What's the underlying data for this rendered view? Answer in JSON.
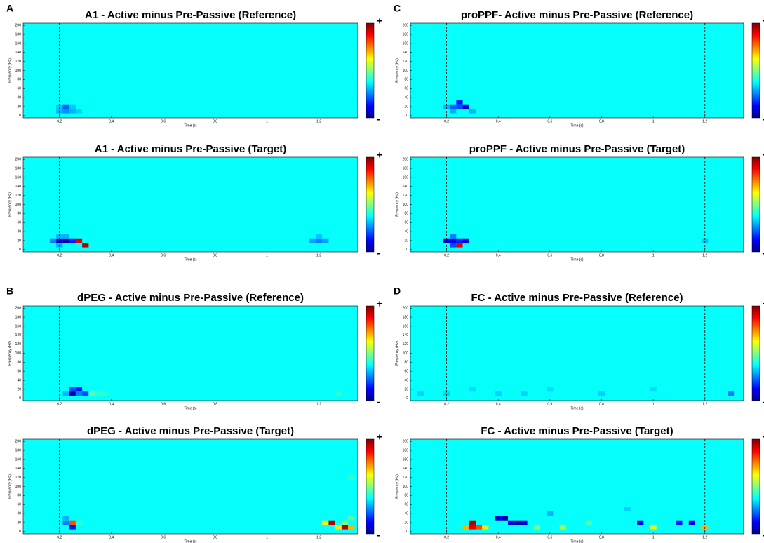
{
  "chart_data": [
    {
      "type": "heatmap",
      "panel_label": "A",
      "title": "A1 - Active minus Pre-Passive (Reference)",
      "xlabel": "Time (s)",
      "ylabel": "Frequency (Hz)",
      "xlim": [
        0.06,
        1.35
      ],
      "ylim": [
        -5,
        205
      ],
      "xticks": [
        {
          "value": 0.2,
          "label": "0,2"
        },
        {
          "value": 0.4,
          "label": "0,4"
        },
        {
          "value": 0.6,
          "label": "0,6"
        },
        {
          "value": 0.8,
          "label": "0,8"
        },
        {
          "value": 1,
          "label": "1"
        },
        {
          "value": 1.2,
          "label": "1,2"
        }
      ],
      "yticks": [
        0,
        20,
        40,
        60,
        80,
        100,
        120,
        140,
        160,
        180,
        200
      ],
      "vlines": [
        0.2,
        1.2
      ],
      "background": 0.38,
      "colorbar_labels": [
        "+",
        "-"
      ],
      "cells": [
        {
          "t": 0.2,
          "f": 10,
          "v": 0.3
        },
        {
          "t": 0.2,
          "f": 20,
          "v": 0.32
        },
        {
          "t": 0.225,
          "f": 20,
          "v": 0.22
        },
        {
          "t": 0.225,
          "f": 10,
          "v": 0.27
        },
        {
          "t": 0.25,
          "f": 10,
          "v": 0.3
        },
        {
          "t": 0.25,
          "f": 20,
          "v": 0.32
        },
        {
          "t": 0.275,
          "f": 10,
          "v": 0.33
        }
      ]
    },
    {
      "type": "heatmap",
      "title": "A1 - Active minus Pre-Passive (Target)",
      "xlabel": "Time (s)",
      "ylabel": "Frequency (Hz)",
      "xlim": [
        0.06,
        1.35
      ],
      "ylim": [
        -5,
        205
      ],
      "xticks": [
        {
          "value": 0.2,
          "label": "0,2"
        },
        {
          "value": 0.4,
          "label": "0,4"
        },
        {
          "value": 0.6,
          "label": "0,6"
        },
        {
          "value": 0.8,
          "label": "0,8"
        },
        {
          "value": 1,
          "label": "1"
        },
        {
          "value": 1.2,
          "label": "1,2"
        }
      ],
      "yticks": [
        0,
        20,
        40,
        60,
        80,
        100,
        120,
        140,
        160,
        180,
        200
      ],
      "vlines": [
        0.2,
        1.2
      ],
      "background": 0.38,
      "colorbar_labels": [
        "+",
        "-"
      ],
      "cells": [
        {
          "t": 0.175,
          "f": 20,
          "v": 0.25
        },
        {
          "t": 0.2,
          "f": 20,
          "v": 0.08
        },
        {
          "t": 0.225,
          "f": 20,
          "v": 0.05
        },
        {
          "t": 0.25,
          "f": 20,
          "v": 0.15
        },
        {
          "t": 0.275,
          "f": 20,
          "v": 0.9
        },
        {
          "t": 0.3,
          "f": 10,
          "v": 0.95
        },
        {
          "t": 0.2,
          "f": 30,
          "v": 0.3
        },
        {
          "t": 0.225,
          "f": 30,
          "v": 0.3
        },
        {
          "t": 0.2,
          "f": 10,
          "v": 0.3
        },
        {
          "t": 1.175,
          "f": 20,
          "v": 0.28
        },
        {
          "t": 1.2,
          "f": 20,
          "v": 0.25
        },
        {
          "t": 1.225,
          "f": 20,
          "v": 0.28
        },
        {
          "t": 1.2,
          "f": 30,
          "v": 0.32
        }
      ]
    },
    {
      "type": "heatmap",
      "panel_label": "B",
      "title": "dPEG - Active minus Pre-Passive (Reference)",
      "xlabel": "Time (s)",
      "ylabel": "Frequency (Hz)",
      "xlim": [
        0.06,
        1.35
      ],
      "ylim": [
        -5,
        205
      ],
      "xticks": [
        {
          "value": 0.2,
          "label": "0,2"
        },
        {
          "value": 0.4,
          "label": "0,4"
        },
        {
          "value": 0.6,
          "label": "0,6"
        },
        {
          "value": 0.8,
          "label": "0,8"
        },
        {
          "value": 1,
          "label": "1"
        },
        {
          "value": 1.2,
          "label": "1,2"
        }
      ],
      "yticks": [
        0,
        20,
        40,
        60,
        80,
        100,
        120,
        140,
        160,
        180,
        200
      ],
      "vlines": [
        0.2,
        1.2
      ],
      "background": 0.38,
      "colorbar_labels": [
        "+",
        "-"
      ],
      "cells": [
        {
          "t": 0.225,
          "f": 10,
          "v": 0.3
        },
        {
          "t": 0.25,
          "f": 10,
          "v": 0.05
        },
        {
          "t": 0.25,
          "f": 20,
          "v": 0.2
        },
        {
          "t": 0.275,
          "f": 20,
          "v": 0.15
        },
        {
          "t": 0.275,
          "f": 10,
          "v": 0.25
        },
        {
          "t": 0.3,
          "f": 10,
          "v": 0.2
        },
        {
          "t": 0.325,
          "f": 10,
          "v": 0.45
        },
        {
          "t": 0.35,
          "f": 10,
          "v": 0.42
        },
        {
          "t": 0.375,
          "f": 10,
          "v": 0.42
        },
        {
          "t": 1.275,
          "f": 10,
          "v": 0.42
        }
      ]
    },
    {
      "type": "heatmap",
      "title": "dPEG - Active minus Pre-Passive (Target)",
      "xlabel": "Time (s)",
      "ylabel": "Frequency (Hz)",
      "xlim": [
        0.06,
        1.35
      ],
      "ylim": [
        -5,
        205
      ],
      "xticks": [
        {
          "value": 0.2,
          "label": "0,2"
        },
        {
          "value": 0.4,
          "label": "0,4"
        },
        {
          "value": 0.6,
          "label": "0,6"
        },
        {
          "value": 0.8,
          "label": "0,8"
        },
        {
          "value": 1,
          "label": "1"
        },
        {
          "value": 1.2,
          "label": "1,2"
        }
      ],
      "yticks": [
        0,
        20,
        40,
        60,
        80,
        100,
        120,
        140,
        160,
        180,
        200
      ],
      "vlines": [
        0.2,
        1.2
      ],
      "background": 0.38,
      "colorbar_labels": [
        "+",
        "-"
      ],
      "cells": [
        {
          "t": 0.225,
          "f": 20,
          "v": 0.25
        },
        {
          "t": 0.25,
          "f": 20,
          "v": 0.8
        },
        {
          "t": 0.25,
          "f": 10,
          "v": 0.15
        },
        {
          "t": 0.225,
          "f": 30,
          "v": 0.3
        },
        {
          "t": 0.275,
          "f": 20,
          "v": 0.42
        },
        {
          "t": 1.225,
          "f": 20,
          "v": 0.6
        },
        {
          "t": 1.25,
          "f": 20,
          "v": 0.95
        },
        {
          "t": 1.275,
          "f": 10,
          "v": 0.65
        },
        {
          "t": 1.3,
          "f": 10,
          "v": 0.95
        },
        {
          "t": 1.325,
          "f": 10,
          "v": 0.7
        },
        {
          "t": 1.3,
          "f": 20,
          "v": 0.5
        },
        {
          "t": 1.325,
          "f": 30,
          "v": 0.45
        },
        {
          "t": 1.325,
          "f": 120,
          "v": 0.42
        }
      ]
    },
    {
      "type": "heatmap",
      "panel_label": "C",
      "title": "proPPF- Active minus Pre-Passive (Reference)",
      "xlabel": "Time (s)",
      "ylabel": "Frequency (Hz)",
      "xlim": [
        0.06,
        1.35
      ],
      "ylim": [
        -5,
        205
      ],
      "xticks": [
        {
          "value": 0.2,
          "label": "0,2"
        },
        {
          "value": 0.4,
          "label": "0,4"
        },
        {
          "value": 0.6,
          "label": "0,6"
        },
        {
          "value": 0.8,
          "label": "0,8"
        },
        {
          "value": 1,
          "label": "1"
        },
        {
          "value": 1.2,
          "label": "1,2"
        }
      ],
      "yticks": [
        0,
        20,
        40,
        60,
        80,
        100,
        120,
        140,
        160,
        180,
        200
      ],
      "vlines": [
        0.2,
        1.2
      ],
      "background": 0.38,
      "colorbar_labels": [
        "+",
        "-"
      ],
      "cells": [
        {
          "t": 0.225,
          "f": 20,
          "v": 0.22
        },
        {
          "t": 0.25,
          "f": 30,
          "v": 0.15
        },
        {
          "t": 0.25,
          "f": 20,
          "v": 0.2
        },
        {
          "t": 0.275,
          "f": 20,
          "v": 0.1
        },
        {
          "t": 0.2,
          "f": 20,
          "v": 0.3
        },
        {
          "t": 0.225,
          "f": 10,
          "v": 0.3
        },
        {
          "t": 0.3,
          "f": 10,
          "v": 0.3
        }
      ]
    },
    {
      "type": "heatmap",
      "title": "proPPF - Active minus Pre-Passive (Target)",
      "xlabel": "Time (s)",
      "ylabel": "Frequency (Hz)",
      "xlim": [
        0.06,
        1.35
      ],
      "ylim": [
        -5,
        205
      ],
      "xticks": [
        {
          "value": 0.2,
          "label": "0,2"
        },
        {
          "value": 0.4,
          "label": "0,4"
        },
        {
          "value": 0.6,
          "label": "0,6"
        },
        {
          "value": 0.8,
          "label": "0,8"
        },
        {
          "value": 1,
          "label": "1"
        },
        {
          "value": 1.2,
          "label": "1,2"
        }
      ],
      "yticks": [
        0,
        20,
        40,
        60,
        80,
        100,
        120,
        140,
        160,
        180,
        200
      ],
      "vlines": [
        0.2,
        1.2
      ],
      "background": 0.38,
      "colorbar_labels": [
        "+",
        "-"
      ],
      "cells": [
        {
          "t": 0.2,
          "f": 20,
          "v": 0.1
        },
        {
          "t": 0.225,
          "f": 20,
          "v": 0.12
        },
        {
          "t": 0.25,
          "f": 20,
          "v": 0.15
        },
        {
          "t": 0.275,
          "f": 20,
          "v": 0.1
        },
        {
          "t": 0.25,
          "f": 10,
          "v": 0.9
        },
        {
          "t": 0.225,
          "f": 10,
          "v": 0.2
        },
        {
          "t": 0.225,
          "f": 30,
          "v": 0.25
        },
        {
          "t": 1.2,
          "f": 20,
          "v": 0.32
        }
      ]
    },
    {
      "type": "heatmap",
      "panel_label": "D",
      "title": "FC - Active minus Pre-Passive (Reference)",
      "xlabel": "Time (s)",
      "ylabel": "Frequency (Hz)",
      "xlim": [
        0.06,
        1.35
      ],
      "ylim": [
        -5,
        205
      ],
      "xticks": [
        {
          "value": 0.2,
          "label": "0,2"
        },
        {
          "value": 0.4,
          "label": "0,4"
        },
        {
          "value": 0.6,
          "label": "0,6"
        },
        {
          "value": 0.8,
          "label": "0,8"
        },
        {
          "value": 1,
          "label": "1"
        },
        {
          "value": 1.2,
          "label": "1,2"
        }
      ],
      "yticks": [
        0,
        20,
        40,
        60,
        80,
        100,
        120,
        140,
        160,
        180,
        200
      ],
      "vlines": [
        0.2,
        1.2
      ],
      "background": 0.38,
      "colorbar_labels": [
        "+",
        "-"
      ],
      "cells": [
        {
          "t": 0.1,
          "f": 10,
          "v": 0.33
        },
        {
          "t": 0.2,
          "f": 10,
          "v": 0.33
        },
        {
          "t": 0.3,
          "f": 20,
          "v": 0.34
        },
        {
          "t": 0.4,
          "f": 10,
          "v": 0.33
        },
        {
          "t": 0.5,
          "f": 10,
          "v": 0.33
        },
        {
          "t": 0.6,
          "f": 20,
          "v": 0.34
        },
        {
          "t": 0.8,
          "f": 10,
          "v": 0.33
        },
        {
          "t": 1.0,
          "f": 20,
          "v": 0.34
        },
        {
          "t": 1.3,
          "f": 10,
          "v": 0.25
        }
      ]
    },
    {
      "type": "heatmap",
      "title": "FC - Active minus Pre-Passive (Target)",
      "xlabel": "Time (s)",
      "ylabel": "Frequency (Hz)",
      "xlim": [
        0.06,
        1.35
      ],
      "ylim": [
        -5,
        205
      ],
      "xticks": [
        {
          "value": 0.2,
          "label": "0,2"
        },
        {
          "value": 0.4,
          "label": "0,4"
        },
        {
          "value": 0.6,
          "label": "0,6"
        },
        {
          "value": 0.8,
          "label": "0,8"
        },
        {
          "value": 1,
          "label": "1"
        },
        {
          "value": 1.2,
          "label": "1,2"
        }
      ],
      "yticks": [
        0,
        20,
        40,
        60,
        80,
        100,
        120,
        140,
        160,
        180,
        200
      ],
      "vlines": [
        0.2,
        1.2
      ],
      "background": 0.38,
      "colorbar_labels": [
        "+",
        "-"
      ],
      "cells": [
        {
          "t": 0.275,
          "f": 10,
          "v": 0.7
        },
        {
          "t": 0.3,
          "f": 10,
          "v": 0.9
        },
        {
          "t": 0.3,
          "f": 20,
          "v": 0.95
        },
        {
          "t": 0.325,
          "f": 10,
          "v": 0.8
        },
        {
          "t": 0.35,
          "f": 10,
          "v": 0.65
        },
        {
          "t": 0.4,
          "f": 30,
          "v": 0.1
        },
        {
          "t": 0.425,
          "f": 30,
          "v": 0.05
        },
        {
          "t": 0.45,
          "f": 20,
          "v": 0.1
        },
        {
          "t": 0.475,
          "f": 20,
          "v": 0.05
        },
        {
          "t": 0.5,
          "f": 20,
          "v": 0.1
        },
        {
          "t": 0.55,
          "f": 10,
          "v": 0.5
        },
        {
          "t": 0.65,
          "f": 10,
          "v": 0.55
        },
        {
          "t": 0.75,
          "f": 20,
          "v": 0.45
        },
        {
          "t": 0.95,
          "f": 20,
          "v": 0.1
        },
        {
          "t": 1.0,
          "f": 10,
          "v": 0.6
        },
        {
          "t": 1.1,
          "f": 20,
          "v": 0.15
        },
        {
          "t": 1.15,
          "f": 20,
          "v": 0.1
        },
        {
          "t": 1.2,
          "f": 10,
          "v": 0.7
        },
        {
          "t": 0.6,
          "f": 40,
          "v": 0.3
        },
        {
          "t": 0.9,
          "f": 50,
          "v": 0.33
        }
      ]
    }
  ]
}
